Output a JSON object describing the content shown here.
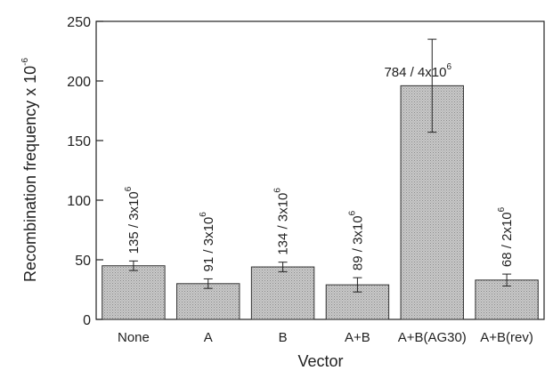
{
  "chart_data": {
    "type": "bar",
    "title": "",
    "xlabel": "Vector",
    "ylabel": "Recombination frequency x 10",
    "ylabel_exponent": "-6",
    "ylim": [
      0,
      250
    ],
    "yticks": [
      "0",
      "50",
      "100",
      "150",
      "200",
      "250"
    ],
    "grid": false,
    "bar_color": "#c8c8c8",
    "categories": [
      "None",
      "A",
      "B",
      "A+B",
      "A+B(AG30)",
      "A+B(rev)"
    ],
    "values": [
      45,
      30,
      44,
      29,
      196,
      33
    ],
    "errors": [
      4,
      4,
      4,
      6,
      39,
      5
    ],
    "bar_labels": [
      {
        "text": "135 / 3x10",
        "exp": "6",
        "orientation": "vertical"
      },
      {
        "text": "91 / 3x10",
        "exp": "6",
        "orientation": "vertical"
      },
      {
        "text": "134 / 3x10",
        "exp": "6",
        "orientation": "vertical"
      },
      {
        "text": "89 / 3x10",
        "exp": "6",
        "orientation": "vertical"
      },
      {
        "text": "784 / 4x10",
        "exp": "6",
        "orientation": "horizontal"
      },
      {
        "text": "68 / 2x10",
        "exp": "6",
        "orientation": "vertical"
      }
    ]
  }
}
